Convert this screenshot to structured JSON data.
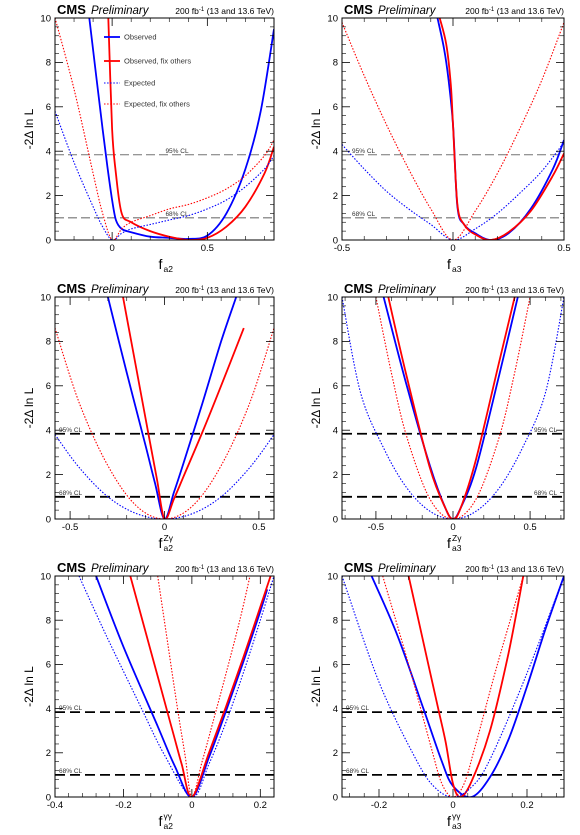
{
  "colors": {
    "observed": "#0000ff",
    "observed_fix": "#ff0000",
    "expected": "#0000ff",
    "expected_fix": "#ff0000"
  },
  "legend": {
    "observed": "Observed",
    "observed_fix": "Observed, fix others",
    "expected": "Expected",
    "expected_fix": "Expected, fix others"
  },
  "chart_data": [
    {
      "type": "line",
      "header": {
        "experiment": "CMS",
        "status": "Preliminary",
        "lumi_prefix": "200 fb",
        "lumi_sup": "-1",
        "lumi_suffix": " (13 and 13.6 TeV)"
      },
      "xlabel": {
        "main": "f",
        "sub": "a2",
        "sup": ""
      },
      "ylabel": "-2Δ ln L",
      "xlim": [
        -0.3,
        0.85
      ],
      "ylim": [
        0,
        10
      ],
      "xticks": [
        0,
        0.5
      ],
      "xtick_labels": [
        "0",
        "0.5"
      ],
      "yticks": [
        0,
        2,
        4,
        6,
        8,
        10
      ],
      "ytick_labels": [
        "0",
        "2",
        "4",
        "6",
        "8",
        "10"
      ],
      "cl_lines": [
        {
          "y": 3.84,
          "label": "95% CL"
        },
        {
          "y": 1.0,
          "label": "68% CL"
        }
      ],
      "legend_position": "top-center",
      "series": [
        {
          "name": "Observed",
          "style": "solid",
          "x": [
            -0.12,
            -0.05,
            -0.02,
            0.0,
            0.02,
            0.05,
            0.1,
            0.2,
            0.3,
            0.4,
            0.5,
            0.6,
            0.7,
            0.78,
            0.85
          ],
          "y": [
            10,
            5.0,
            3.0,
            1.8,
            0.9,
            0.5,
            0.35,
            0.15,
            0.1,
            0.05,
            0.2,
            1.2,
            3.2,
            5.8,
            9.5
          ]
        },
        {
          "name": "Observed, fix others",
          "style": "solid",
          "x": [
            -0.02,
            0.0,
            0.02,
            0.05,
            0.1,
            0.2,
            0.3,
            0.4,
            0.5,
            0.6,
            0.7,
            0.8,
            0.85
          ],
          "y": [
            10,
            5.0,
            3.0,
            1.2,
            0.8,
            0.4,
            0.15,
            0.0,
            0.1,
            0.6,
            1.5,
            3.0,
            4.2
          ]
        },
        {
          "name": "Expected",
          "style": "dotted",
          "x": [
            -0.3,
            -0.2,
            -0.1,
            -0.05,
            0.0,
            0.05,
            0.1,
            0.2,
            0.3,
            0.4,
            0.5,
            0.6,
            0.7,
            0.8,
            0.85
          ],
          "y": [
            5.8,
            3.5,
            1.5,
            0.6,
            0.0,
            0.3,
            0.5,
            0.7,
            0.9,
            1.1,
            1.4,
            1.8,
            2.4,
            3.2,
            3.8
          ]
        },
        {
          "name": "Expected, fix others",
          "style": "dotted",
          "x": [
            -0.3,
            -0.2,
            -0.1,
            -0.05,
            0.0,
            0.05,
            0.1,
            0.2,
            0.3,
            0.4,
            0.5,
            0.6,
            0.7,
            0.8,
            0.85
          ],
          "y": [
            10,
            6.8,
            3.0,
            1.2,
            0.0,
            0.5,
            0.8,
            1.1,
            1.4,
            1.6,
            1.9,
            2.3,
            2.9,
            3.8,
            4.5
          ]
        }
      ]
    },
    {
      "type": "line",
      "header": {
        "experiment": "CMS",
        "status": "Preliminary",
        "lumi_prefix": "200 fb",
        "lumi_sup": "-1",
        "lumi_suffix": " (13 and 13.6 TeV)"
      },
      "xlabel": {
        "main": "f",
        "sub": "a3",
        "sup": ""
      },
      "ylabel": "-2Δ ln L",
      "xlim": [
        -0.5,
        0.5
      ],
      "ylim": [
        0,
        10
      ],
      "xticks": [
        -0.5,
        0,
        0.5
      ],
      "xtick_labels": [
        "-0.5",
        "0",
        "0.5"
      ],
      "yticks": [
        0,
        2,
        4,
        6,
        8,
        10
      ],
      "ytick_labels": [
        "0",
        "2",
        "4",
        "6",
        "8",
        "10"
      ],
      "cl_lines": [
        {
          "y": 3.84,
          "label": "95% CL"
        },
        {
          "y": 1.0,
          "label": "68% CL"
        }
      ],
      "series": [
        {
          "name": "Observed",
          "style": "solid",
          "x": [
            -0.07,
            -0.04,
            -0.02,
            0.0,
            0.02,
            0.05,
            0.1,
            0.17,
            0.25,
            0.35,
            0.45,
            0.5
          ],
          "y": [
            10,
            8.6,
            7.2,
            5.2,
            1.5,
            0.7,
            0.3,
            0.0,
            0.3,
            1.4,
            3.2,
            4.5
          ]
        },
        {
          "name": "Observed, fix others",
          "style": "solid",
          "x": [
            -0.06,
            -0.03,
            -0.01,
            0.0,
            0.02,
            0.05,
            0.1,
            0.17,
            0.25,
            0.35,
            0.45,
            0.5
          ],
          "y": [
            10,
            8.8,
            7.0,
            5.2,
            1.6,
            0.7,
            0.25,
            0.0,
            0.35,
            1.3,
            2.9,
            3.9
          ]
        },
        {
          "name": "Expected",
          "style": "dotted",
          "x": [
            -0.5,
            -0.4,
            -0.3,
            -0.2,
            -0.1,
            0.0,
            0.1,
            0.2,
            0.3,
            0.4,
            0.5
          ],
          "y": [
            4.3,
            3.2,
            2.2,
            1.4,
            0.7,
            0.0,
            0.5,
            1.2,
            2.1,
            3.1,
            4.4
          ]
        },
        {
          "name": "Expected, fix others",
          "style": "dotted",
          "x": [
            -0.5,
            -0.4,
            -0.3,
            -0.2,
            -0.1,
            0.0,
            0.1,
            0.2,
            0.3,
            0.4,
            0.5
          ],
          "y": [
            9.8,
            7.4,
            5.2,
            3.2,
            1.4,
            0.0,
            1.3,
            3.0,
            5.0,
            7.2,
            9.8
          ]
        }
      ]
    },
    {
      "type": "line",
      "header": {
        "experiment": "CMS",
        "status": "Preliminary",
        "lumi_prefix": "200 fb",
        "lumi_sup": "-1",
        "lumi_suffix": " (13 and 13.6 TeV)"
      },
      "xlabel": {
        "main": "f",
        "sub": "a2",
        "sup": "Zγ"
      },
      "ylabel": "-2Δ ln L",
      "xlim": [
        -0.58,
        0.58
      ],
      "ylim": [
        0,
        10
      ],
      "xticks": [
        -0.5,
        0,
        0.5
      ],
      "xtick_labels": [
        "-0.5",
        "0",
        "0.5"
      ],
      "yticks": [
        0,
        2,
        4,
        6,
        8,
        10
      ],
      "ytick_labels": [
        "0",
        "2",
        "4",
        "6",
        "8",
        "10"
      ],
      "cl_lines": [
        {
          "y": 3.84,
          "label": "95% CL"
        },
        {
          "y": 1.0,
          "label": "68% CL"
        }
      ],
      "series": [
        {
          "name": "Observed",
          "style": "solid",
          "x": [
            -0.3,
            -0.2,
            -0.1,
            -0.05,
            0.0,
            0.05,
            0.1,
            0.2,
            0.3,
            0.38
          ],
          "y": [
            10,
            6.6,
            3.3,
            1.6,
            0.0,
            1.2,
            2.5,
            5.2,
            8.0,
            10
          ]
        },
        {
          "name": "Observed, fix others",
          "style": "solid",
          "x": [
            -0.22,
            -0.15,
            -0.08,
            -0.04,
            0.0,
            0.05,
            0.1,
            0.2,
            0.3,
            0.42
          ],
          "y": [
            10,
            6.8,
            3.6,
            1.8,
            0.0,
            0.9,
            1.9,
            3.9,
            6.0,
            8.6
          ]
        },
        {
          "name": "Expected",
          "style": "dotted",
          "x": [
            -0.58,
            -0.45,
            -0.3,
            -0.15,
            0.0,
            0.15,
            0.3,
            0.45,
            0.58
          ],
          "y": [
            3.8,
            2.3,
            1.0,
            0.25,
            0.0,
            0.25,
            1.0,
            2.3,
            3.8
          ]
        },
        {
          "name": "Expected, fix others",
          "style": "dotted",
          "x": [
            -0.58,
            -0.45,
            -0.3,
            -0.15,
            0.0,
            0.15,
            0.3,
            0.45,
            0.58
          ],
          "y": [
            8.6,
            5.2,
            2.4,
            0.6,
            0.0,
            0.6,
            2.4,
            5.2,
            8.6
          ]
        }
      ]
    },
    {
      "type": "line",
      "header": {
        "experiment": "CMS",
        "status": "Preliminary",
        "lumi_prefix": "200 fb",
        "lumi_sup": "-1",
        "lumi_suffix": " (13 and 13.6 TeV)"
      },
      "xlabel": {
        "main": "f",
        "sub": "a3",
        "sup": "Zγ"
      },
      "ylabel": "-2Δ ln L",
      "xlim": [
        -0.72,
        0.72
      ],
      "ylim": [
        0,
        10
      ],
      "xticks": [
        -0.5,
        0,
        0.5
      ],
      "xtick_labels": [
        "-0.5",
        "0",
        "0.5"
      ],
      "yticks": [
        0,
        2,
        4,
        6,
        8,
        10
      ],
      "ytick_labels": [
        "0",
        "2",
        "4",
        "6",
        "8",
        "10"
      ],
      "cl_lines": [
        {
          "y": 3.84,
          "label": "95% CL"
        },
        {
          "y": 1.0,
          "label": "68% CL"
        }
      ],
      "series": [
        {
          "name": "Observed",
          "style": "solid",
          "x": [
            -0.45,
            -0.3,
            -0.15,
            -0.05,
            0.0,
            0.05,
            0.15,
            0.3,
            0.42
          ],
          "y": [
            10,
            6.0,
            2.4,
            0.5,
            0.0,
            0.5,
            2.3,
            6.5,
            10
          ]
        },
        {
          "name": "Observed, fix others",
          "style": "solid",
          "x": [
            -0.42,
            -0.3,
            -0.15,
            -0.05,
            0.0,
            0.05,
            0.15,
            0.3,
            0.4
          ],
          "y": [
            10,
            6.4,
            2.3,
            0.5,
            0.0,
            0.5,
            2.7,
            7.1,
            10
          ]
        },
        {
          "name": "Expected",
          "style": "dotted",
          "x": [
            -0.72,
            -0.6,
            -0.45,
            -0.3,
            -0.15,
            0.0,
            0.15,
            0.3,
            0.45,
            0.6,
            0.72
          ],
          "y": [
            10,
            5.7,
            3.2,
            1.4,
            0.35,
            0.0,
            0.35,
            1.4,
            3.2,
            5.7,
            10
          ]
        },
        {
          "name": "Expected, fix others",
          "style": "dotted",
          "x": [
            -0.5,
            -0.4,
            -0.3,
            -0.15,
            0.0,
            0.15,
            0.3,
            0.4,
            0.5
          ],
          "y": [
            10,
            6.6,
            3.7,
            0.9,
            0.0,
            0.9,
            3.7,
            6.6,
            10
          ]
        }
      ]
    },
    {
      "type": "line",
      "header": {
        "experiment": "CMS",
        "status": "Preliminary",
        "lumi_prefix": "200 fb",
        "lumi_sup": "-1",
        "lumi_suffix": " (13 and 13.6 TeV)"
      },
      "xlabel": {
        "main": "f",
        "sub": "a2",
        "sup": "γγ"
      },
      "ylabel": "-2Δ ln L",
      "xlim": [
        -0.4,
        0.24
      ],
      "ylim": [
        0,
        10
      ],
      "xticks": [
        -0.4,
        -0.2,
        0,
        0.2
      ],
      "xtick_labels": [
        "-0.4",
        "-0.2",
        "0",
        "0.2"
      ],
      "yticks": [
        0,
        2,
        4,
        6,
        8,
        10
      ],
      "ytick_labels": [
        "0",
        "2",
        "4",
        "6",
        "8",
        "10"
      ],
      "cl_lines": [
        {
          "y": 3.84,
          "label": "95% CL"
        },
        {
          "y": 1.0,
          "label": "68% CL"
        }
      ],
      "series": [
        {
          "name": "Observed",
          "style": "solid",
          "x": [
            -0.28,
            -0.2,
            -0.1,
            -0.05,
            0.0,
            0.05,
            0.1,
            0.15,
            0.2,
            0.22
          ],
          "y": [
            10,
            6.8,
            3.2,
            1.4,
            0.0,
            1.8,
            3.9,
            6.1,
            8.4,
            9.4
          ]
        },
        {
          "name": "Observed, fix others",
          "style": "solid",
          "x": [
            -0.18,
            -0.12,
            -0.06,
            -0.03,
            0.0,
            0.05,
            0.1,
            0.15,
            0.2,
            0.23
          ],
          "y": [
            10,
            6.6,
            3.2,
            1.5,
            0.0,
            2.0,
            4.1,
            6.3,
            8.6,
            10
          ]
        },
        {
          "name": "Expected",
          "style": "dotted",
          "x": [
            -0.33,
            -0.25,
            -0.15,
            -0.08,
            0.0,
            0.05,
            0.1,
            0.15,
            0.2,
            0.24
          ],
          "y": [
            10,
            7.3,
            4.1,
            1.9,
            0.0,
            1.5,
            3.4,
            5.6,
            8.0,
            10
          ]
        },
        {
          "name": "Expected, fix others",
          "style": "dotted",
          "x": [
            -0.1,
            -0.07,
            -0.04,
            -0.02,
            0.0,
            0.03,
            0.06,
            0.1,
            0.14,
            0.17
          ],
          "y": [
            10,
            6.9,
            3.8,
            1.9,
            0.0,
            1.6,
            3.3,
            5.6,
            8.0,
            10
          ]
        }
      ]
    },
    {
      "type": "line",
      "header": {
        "experiment": "CMS",
        "status": "Preliminary",
        "lumi_prefix": "200 fb",
        "lumi_sup": "-1",
        "lumi_suffix": " (13 and 13.6 TeV)"
      },
      "xlabel": {
        "main": "f",
        "sub": "a3",
        "sup": "γγ"
      },
      "ylabel": "-2Δ ln L",
      "xlim": [
        -0.3,
        0.3
      ],
      "ylim": [
        0,
        10
      ],
      "xticks": [
        -0.2,
        0,
        0.2
      ],
      "xtick_labels": [
        "-0.2",
        "0",
        "0.2"
      ],
      "yticks": [
        0,
        2,
        4,
        6,
        8,
        10
      ],
      "ytick_labels": [
        "0",
        "2",
        "4",
        "6",
        "8",
        "10"
      ],
      "cl_lines": [
        {
          "y": 3.84,
          "label": "95% CL"
        },
        {
          "y": 1.0,
          "label": "68% CL"
        }
      ],
      "series": [
        {
          "name": "Observed",
          "style": "solid",
          "x": [
            -0.22,
            -0.15,
            -0.08,
            -0.03,
            0.0,
            0.05,
            0.1,
            0.15,
            0.2,
            0.25,
            0.3
          ],
          "y": [
            10,
            7.3,
            4.0,
            1.6,
            0.5,
            0.0,
            0.9,
            2.6,
            5.0,
            7.6,
            10
          ]
        },
        {
          "name": "Observed, fix others",
          "style": "solid",
          "x": [
            -0.12,
            -0.08,
            -0.04,
            -0.02,
            0.0,
            0.02,
            0.05,
            0.1,
            0.15,
            0.19
          ],
          "y": [
            10,
            7.0,
            4.0,
            2.5,
            0.6,
            0.0,
            0.7,
            3.0,
            6.5,
            10
          ]
        },
        {
          "name": "Expected",
          "style": "dotted",
          "x": [
            -0.3,
            -0.2,
            -0.1,
            -0.05,
            0.0,
            0.05,
            0.1,
            0.2,
            0.3
          ],
          "y": [
            10,
            5.2,
            1.7,
            0.45,
            0.0,
            0.45,
            1.7,
            5.6,
            10
          ]
        },
        {
          "name": "Expected, fix others",
          "style": "dotted",
          "x": [
            -0.19,
            -0.12,
            -0.06,
            -0.03,
            0.0,
            0.03,
            0.06,
            0.12,
            0.19
          ],
          "y": [
            10,
            6.0,
            2.3,
            0.6,
            0.0,
            0.6,
            2.3,
            6.0,
            10
          ]
        }
      ]
    }
  ]
}
